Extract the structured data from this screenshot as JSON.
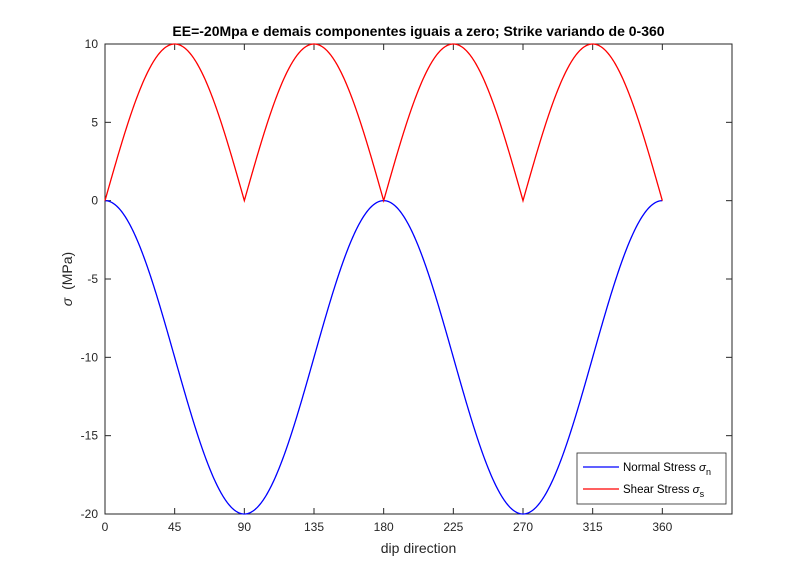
{
  "chart_data": {
    "type": "line",
    "title": "EE=-20Mpa e demais componentes iguais a zero;  Strike variando de 0-360",
    "xlabel": "dip direction",
    "ylabel_symbol": "σ",
    "ylabel_unit": "(MPa)",
    "xlim": [
      0,
      405
    ],
    "ylim": [
      -20,
      10
    ],
    "xticks": [
      "0",
      "45",
      "90",
      "135",
      "180",
      "225",
      "270",
      "315",
      "360"
    ],
    "xtick_values": [
      0,
      45,
      90,
      135,
      180,
      225,
      270,
      315,
      360
    ],
    "yticks": [
      "-20",
      "-15",
      "-10",
      "-5",
      "0",
      "5",
      "10"
    ],
    "ytick_values": [
      -20,
      -15,
      -10,
      -5,
      0,
      5,
      10
    ],
    "grid": false,
    "legend_position": "bottom-right",
    "x_range": [
      0,
      360
    ],
    "series": [
      {
        "name": "Normal Stress σn",
        "legend_main": "Normal Stress ",
        "legend_symbol": "σ",
        "legend_sub": "n",
        "color": "#0000ff",
        "formula": "-20*sin^2(x)",
        "x": [
          0,
          45,
          90,
          135,
          180,
          225,
          270,
          315,
          360
        ],
        "values": [
          0,
          -10,
          -20,
          -10,
          0,
          -10,
          -20,
          -10,
          0
        ]
      },
      {
        "name": "Shear Stress σs",
        "legend_main": "Shear Stress ",
        "legend_symbol": "σ",
        "legend_sub": "s",
        "color": "#ff0000",
        "formula": "10*|sin(2x)|",
        "x": [
          0,
          45,
          90,
          135,
          180,
          225,
          270,
          315,
          360
        ],
        "values": [
          0,
          10,
          0,
          10,
          0,
          10,
          0,
          10,
          0
        ]
      }
    ]
  }
}
